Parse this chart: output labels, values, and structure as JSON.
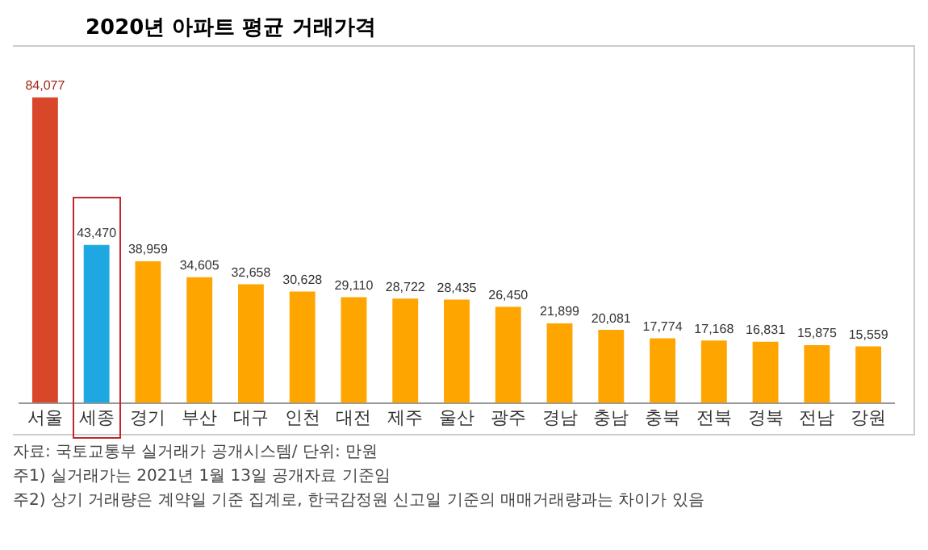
{
  "chart_data": {
    "type": "bar",
    "title": "2020년 아파트 평균 거래가격",
    "categories": [
      "서울",
      "세종",
      "경기",
      "부산",
      "대구",
      "인천",
      "대전",
      "제주",
      "울산",
      "광주",
      "경남",
      "충남",
      "충북",
      "전북",
      "경북",
      "전남",
      "강원"
    ],
    "values": [
      84077,
      43470,
      38959,
      34605,
      32658,
      30628,
      29110,
      28722,
      28435,
      26450,
      21899,
      20081,
      17774,
      17168,
      16831,
      15875,
      15559
    ],
    "colors": [
      "#d9472b",
      "#1ea7e1",
      "#ffa500",
      "#ffa500",
      "#ffa500",
      "#ffa500",
      "#ffa500",
      "#ffa500",
      "#ffa500",
      "#ffa500",
      "#ffa500",
      "#ffa500",
      "#ffa500",
      "#ffa500",
      "#ffa500",
      "#ffa500",
      "#ffa500"
    ],
    "value_labels": [
      "84,077",
      "43,470",
      "38,959",
      "34,605",
      "32,658",
      "30,628",
      "29,110",
      "28,722",
      "28,435",
      "26,450",
      "21,899",
      "20,081",
      "17,774",
      "17,168",
      "16,831",
      "15,875",
      "15,559"
    ],
    "grid": false,
    "legend": false,
    "annotations": [
      "자료: 국토교통부 실거래가 공개시스템/ 단위: 만원",
      "주1) 실거래가는 2021년 1월 13일  공개자료 기준임",
      "주2) 상기 거래량은 계약일 기준 집계로, 한국감정원 신고일 기준의 매매거래량과는 차이가 있음"
    ]
  }
}
